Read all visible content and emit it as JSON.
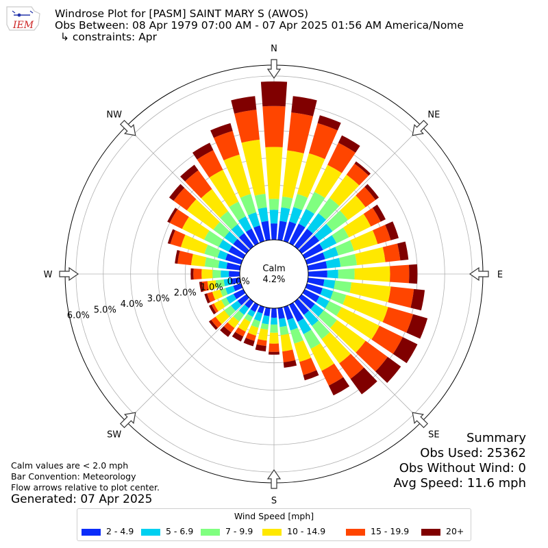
{
  "header": {
    "title": "Windrose Plot for [PASM] SAINT MARY S (AWOS)",
    "obs_between": "Obs Between: 08 Apr 1979 07:00 AM - 07 Apr 2025 01:56 AM America/Nome",
    "constraints": "↳ constraints: Apr"
  },
  "logo": {
    "text": "IEM",
    "color": "#cc2222"
  },
  "footer": {
    "calm_note": "Calm values are < 2.0 mph",
    "bar_convention": "Bar Convention: Meteorology",
    "flow_note": "Flow arrows relative to plot center.",
    "generated": "Generated: 07 Apr 2025"
  },
  "summary": {
    "heading": "Summary",
    "obs_used": "Obs Used: 25362",
    "obs_without_wind": "Obs Without Wind: 0",
    "avg_speed": "Avg Speed: 11.6 mph"
  },
  "legend": {
    "title": "Wind Speed [mph]",
    "items": [
      {
        "label": "2 - 4.9",
        "color": "#0b2cfa"
      },
      {
        "label": "5 - 6.9",
        "color": "#00d0f0"
      },
      {
        "label": "7 - 9.9",
        "color": "#80ff80"
      },
      {
        "label": "10 - 14.9",
        "color": "#ffe800"
      },
      {
        "label": "15 - 19.9",
        "color": "#ff4500"
      },
      {
        "label": "20+",
        "color": "#800000"
      }
    ]
  },
  "chart_data": {
    "type": "windrose",
    "calm": {
      "label": "Calm",
      "value": "4.2%",
      "percent": 4.2
    },
    "radial_ticks": [
      "0.0%",
      "1.0%",
      "2.0%",
      "3.0%",
      "4.0%",
      "5.0%",
      "6.0%"
    ],
    "rmax_percent": 6.4,
    "directions": [
      "N",
      "NE",
      "E",
      "SE",
      "S",
      "SW",
      "W",
      "NW"
    ],
    "bin_width_deg": 10,
    "speed_bins": [
      "2 - 4.9",
      "5 - 6.9",
      "7 - 9.9",
      "10 - 14.9",
      "15 - 19.9",
      "20+"
    ],
    "colors": [
      "#0b2cfa",
      "#00d0f0",
      "#80ff80",
      "#ffe800",
      "#ff4500",
      "#800000"
    ],
    "cumulative_percent": [
      [
        0.6,
        1.1,
        1.5,
        3.4,
        4.9,
        5.8
      ],
      [
        0.7,
        1.2,
        1.6,
        3.3,
        4.7,
        5.3
      ],
      [
        0.75,
        1.3,
        1.8,
        3.35,
        4.5,
        4.8
      ],
      [
        0.8,
        1.4,
        2.1,
        3.2,
        4.1,
        4.4
      ],
      [
        0.8,
        1.5,
        2.2,
        3.25,
        3.75,
        3.85
      ],
      [
        0.8,
        1.4,
        2.1,
        2.9,
        3.35,
        3.5
      ],
      [
        0.75,
        1.3,
        1.8,
        2.7,
        3.1,
        3.3
      ],
      [
        0.7,
        1.2,
        1.8,
        2.7,
        3.2,
        3.5
      ],
      [
        0.7,
        1.2,
        1.8,
        2.85,
        3.4,
        3.7
      ],
      [
        0.7,
        1.1,
        1.7,
        3.0,
        3.7,
        4.0
      ],
      [
        0.6,
        1.0,
        1.6,
        3.05,
        3.9,
        4.3
      ],
      [
        0.6,
        1.0,
        1.5,
        3.1,
        4.05,
        4.6
      ],
      [
        0.6,
        1.0,
        1.5,
        3.05,
        4.0,
        4.6
      ],
      [
        0.6,
        1.0,
        1.6,
        2.9,
        3.9,
        4.5
      ],
      [
        0.6,
        1.1,
        1.7,
        2.8,
        3.5,
        4.2
      ],
      [
        0.7,
        1.2,
        1.8,
        2.7,
        3.3,
        3.7
      ],
      [
        0.5,
        0.9,
        1.4,
        2.1,
        2.6,
        2.8
      ],
      [
        0.4,
        0.7,
        1.0,
        1.6,
        2.0,
        2.2
      ],
      [
        0.35,
        0.6,
        0.9,
        1.3,
        1.6,
        1.7
      ],
      [
        0.3,
        0.6,
        0.8,
        1.2,
        1.4,
        1.6
      ],
      [
        0.25,
        0.55,
        0.8,
        1.1,
        1.3,
        1.5
      ],
      [
        0.3,
        0.5,
        0.7,
        1.1,
        1.3,
        1.5
      ],
      [
        0.3,
        0.6,
        0.9,
        1.2,
        1.4,
        1.6
      ],
      [
        0.4,
        0.7,
        1.0,
        1.4,
        1.6,
        1.7
      ],
      [
        0.4,
        0.7,
        0.9,
        1.2,
        1.3,
        1.4
      ],
      [
        0.3,
        0.6,
        0.8,
        1.1,
        1.3,
        1.4
      ],
      [
        0.35,
        0.6,
        0.9,
        1.2,
        1.4,
        1.5
      ],
      [
        0.4,
        0.7,
        1.0,
        1.4,
        1.7,
        1.8
      ],
      [
        0.5,
        0.8,
        1.3,
        1.8,
        2.3,
        2.4
      ],
      [
        0.6,
        0.9,
        1.4,
        2.3,
        2.7,
        2.8
      ],
      [
        0.6,
        1.0,
        1.6,
        2.5,
        3.0,
        3.1
      ],
      [
        0.6,
        1.0,
        1.5,
        2.7,
        3.3,
        3.5
      ],
      [
        0.6,
        1.0,
        1.6,
        2.6,
        3.45,
        3.7
      ],
      [
        0.6,
        1.1,
        1.7,
        3.0,
        3.8,
        4.1
      ],
      [
        0.6,
        1.1,
        1.8,
        3.3,
        4.2,
        4.5
      ],
      [
        0.7,
        1.2,
        1.7,
        3.7,
        4.8,
        5.3
      ]
    ]
  }
}
